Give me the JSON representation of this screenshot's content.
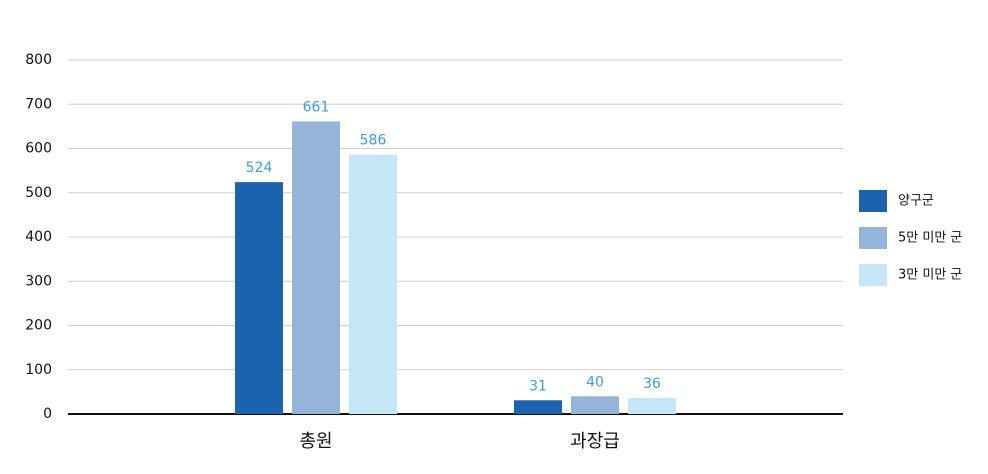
{
  "chart_data": {
    "type": "bar",
    "categories": [
      "총원",
      "과장급"
    ],
    "series": [
      {
        "name": "양구군",
        "color": "#1b63ae",
        "values": [
          524,
          31
        ]
      },
      {
        "name": "5만 미만 군",
        "color": "#94b5d9",
        "values": [
          661,
          40
        ]
      },
      {
        "name": "3만 미만 군",
        "color": "#c4e6f6",
        "values": [
          586,
          36
        ]
      }
    ],
    "ylim": [
      0,
      800
    ],
    "yticks": [
      0,
      100,
      200,
      300,
      400,
      500,
      600,
      700,
      800
    ],
    "grid": true,
    "legend": "right"
  }
}
